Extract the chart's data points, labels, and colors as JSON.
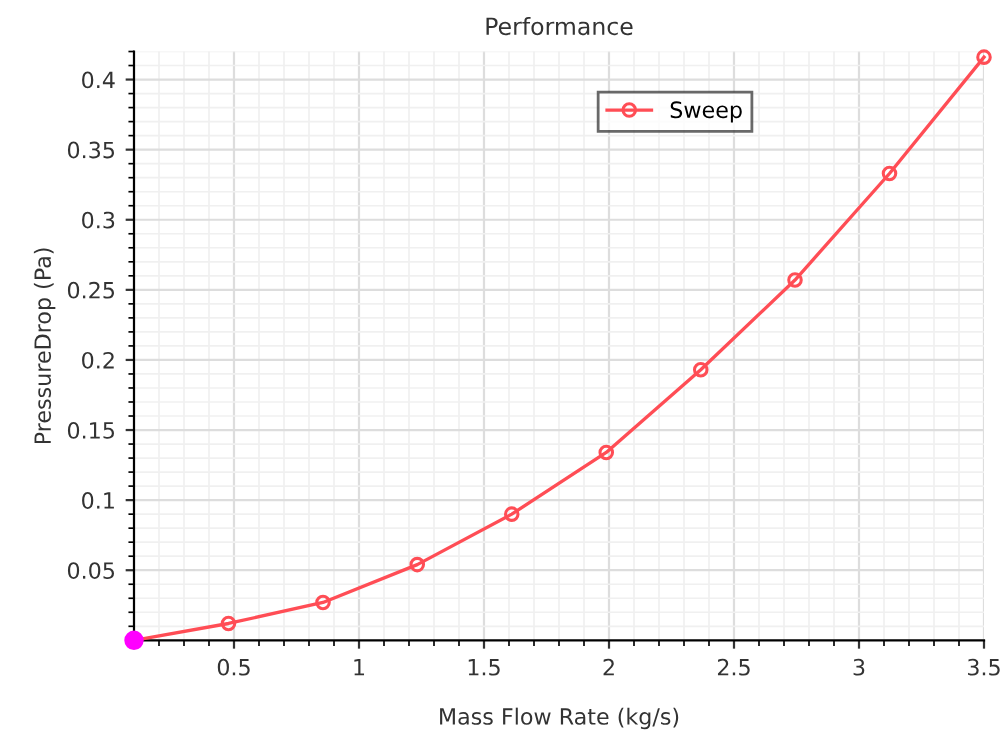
{
  "chart_data": {
    "type": "line",
    "title": "Performance",
    "xlabel": "Mass Flow Rate (kg/s)",
    "ylabel": "PressureDrop (Pa)",
    "x": [
      0.1,
      0.478,
      0.856,
      1.233,
      1.611,
      1.989,
      2.367,
      2.744,
      3.122,
      3.5
    ],
    "series": [
      {
        "name": "Sweep",
        "color": "#ff4d55",
        "colors": [
          "#ff00ff",
          "#ff4d55",
          "#ff4d55",
          "#ff4d55",
          "#ff4d55",
          "#ff4d55",
          "#ff4d55",
          "#ff4d55",
          "#ff4d55",
          "#ff4d55"
        ],
        "values": [
          0.0,
          0.012,
          0.027,
          0.054,
          0.09,
          0.134,
          0.193,
          0.257,
          0.333,
          0.416
        ]
      }
    ],
    "xlim": [
      0.1,
      3.5
    ],
    "ylim": [
      0,
      0.42
    ],
    "xticks": [
      0.5,
      1,
      1.5,
      2,
      2.5,
      3,
      3.5
    ],
    "yticks": [
      0.05,
      0.1,
      0.15,
      0.2,
      0.25,
      0.3,
      0.35,
      0.4
    ],
    "grid": true,
    "legend": "top right",
    "marker": "circle",
    "line_style": "solid"
  }
}
